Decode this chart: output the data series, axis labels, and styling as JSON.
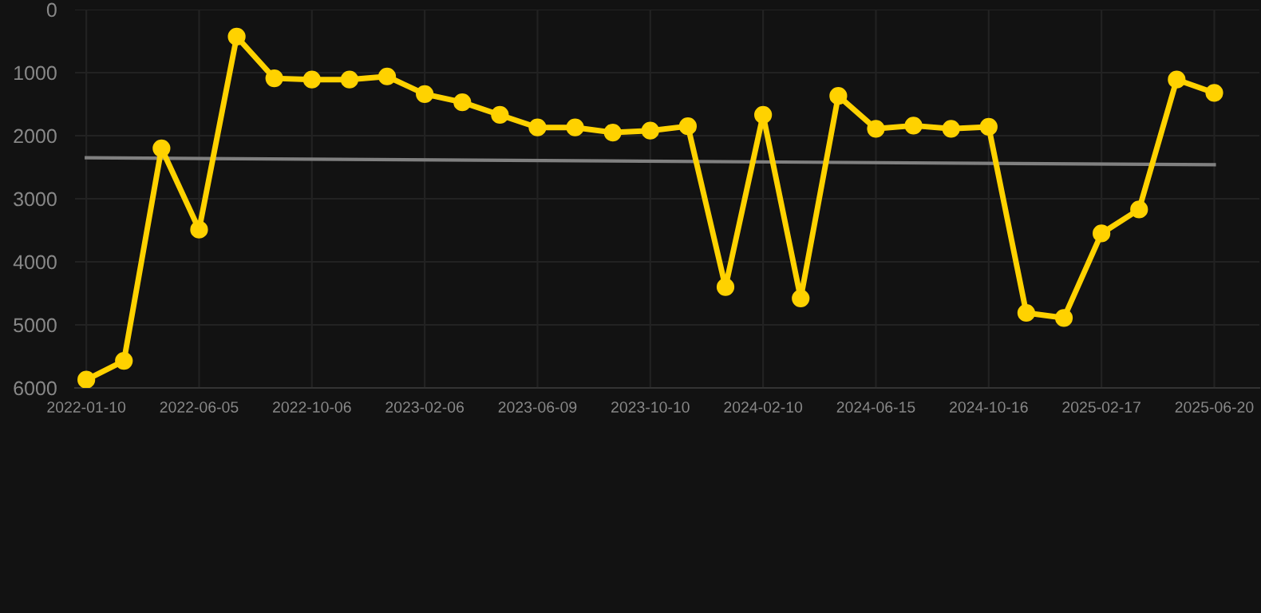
{
  "chart_data": {
    "type": "line",
    "categories": [
      "2022-01-10",
      null,
      null,
      "2022-06-05",
      null,
      null,
      "2022-10-06",
      null,
      null,
      "2023-02-06",
      null,
      null,
      "2023-06-09",
      null,
      null,
      "2023-10-10",
      null,
      null,
      "2024-02-10",
      null,
      null,
      "2024-06-15",
      null,
      null,
      "2024-10-16",
      null,
      null,
      "2025-02-17",
      null,
      null,
      "2025-06-20"
    ],
    "series": [
      {
        "color": "#ffd200",
        "marker": "circle",
        "values": [
          5870,
          5570,
          2200,
          3490,
          430,
          1090,
          1110,
          1110,
          1060,
          1340,
          1470,
          1670,
          1870,
          1870,
          1950,
          1920,
          1850,
          4400,
          1670,
          4580,
          1370,
          1890,
          1840,
          1890,
          1860,
          4810,
          4890,
          3550,
          3170,
          1110,
          1320
        ]
      },
      {
        "color": "#808080",
        "marker": "none",
        "values": [
          2350,
          null,
          null,
          null,
          null,
          null,
          null,
          null,
          null,
          null,
          null,
          null,
          null,
          null,
          null,
          null,
          null,
          null,
          null,
          null,
          null,
          null,
          null,
          null,
          null,
          null,
          null,
          null,
          null,
          null,
          2460
        ]
      }
    ],
    "ylim": [
      6000,
      0
    ],
    "yticks": [
      0,
      1000,
      2000,
      3000,
      4000,
      5000,
      6000
    ],
    "grid": true
  }
}
